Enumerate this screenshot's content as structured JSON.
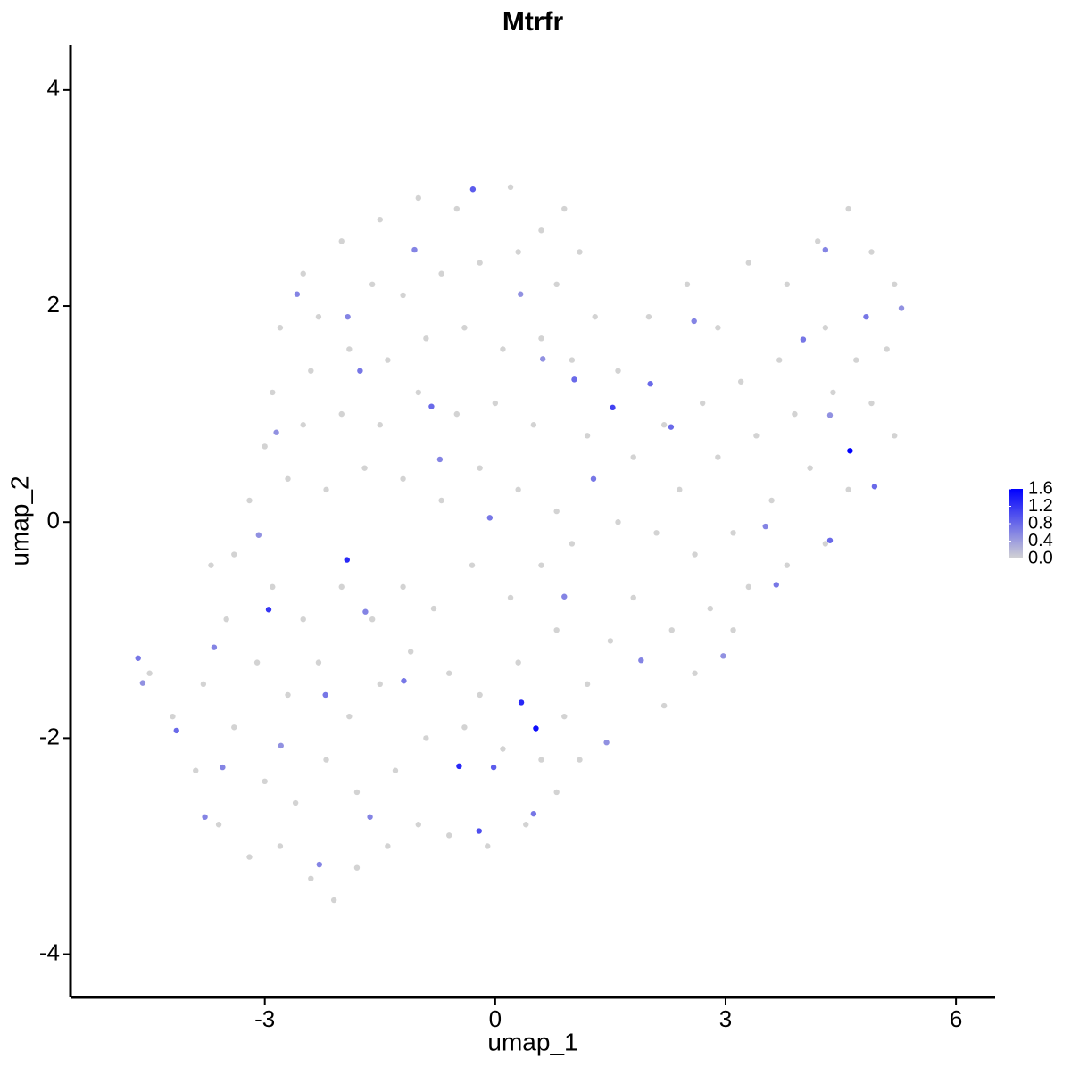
{
  "chart_data": {
    "type": "scatter",
    "title": "Mtrfr",
    "x_label": "umap_1",
    "y_label": "umap_2",
    "xlim": [
      -5.53,
      6.51
    ],
    "ylim": [
      -4.4,
      4.42
    ],
    "xticks": [
      -3,
      0,
      3,
      6
    ],
    "yticks": [
      -4,
      -2,
      0,
      2,
      4
    ],
    "color_low": "#d3d3d3",
    "color_high": "#0000ff",
    "clim": [
      0,
      1.6
    ],
    "colorbar_ticks": [
      {
        "value": 0,
        "label": "0.0"
      },
      0.4,
      0.8,
      1.2,
      1.6
    ],
    "x": [
      -2.5,
      -2.0,
      -1.5,
      -1.0,
      -0.5,
      0.2,
      0.6,
      1.1,
      0.9,
      -2.8,
      -2.3,
      -1.6,
      -1.2,
      -0.7,
      -0.2,
      0.3,
      0.8,
      1.3,
      -2.9,
      -2.4,
      -1.9,
      -1.4,
      -0.9,
      -0.4,
      0.1,
      0.6,
      1.0,
      -3.0,
      -2.5,
      -2.0,
      -1.5,
      -1.0,
      -0.5,
      0.0,
      0.5,
      1.2,
      -3.2,
      -2.7,
      -2.2,
      -1.7,
      -1.2,
      -0.7,
      -0.2,
      0.3,
      0.8,
      1.6,
      2.0,
      2.5,
      2.9,
      3.3,
      3.8,
      4.2,
      4.6,
      4.9,
      5.2,
      5.1,
      4.7,
      4.3,
      3.7,
      3.2,
      2.7,
      2.2,
      1.8,
      2.4,
      2.9,
      3.4,
      3.9,
      4.4,
      4.9,
      5.2,
      4.6,
      4.1,
      3.6,
      3.1,
      2.6,
      2.1,
      1.6,
      4.3,
      3.8,
      3.3,
      2.8,
      2.3,
      1.8,
      3.1,
      2.6,
      2.2,
      1.5,
      -4.5,
      -4.2,
      -3.9,
      -3.6,
      -3.2,
      -2.8,
      -2.4,
      -2.1,
      -1.8,
      -1.4,
      -1.0,
      -0.6,
      -0.1,
      0.4,
      0.8,
      1.1,
      -3.8,
      -3.4,
      -3.0,
      -2.6,
      -2.2,
      -1.8,
      -1.3,
      -0.9,
      -0.4,
      0.1,
      0.6,
      0.9,
      -3.5,
      -3.1,
      -2.7,
      -2.3,
      -1.9,
      -1.5,
      -1.1,
      -0.6,
      -0.2,
      0.3,
      0.8,
      1.2,
      -3.4,
      -2.9,
      -2.5,
      -2.0,
      -1.6,
      -1.2,
      -0.8,
      -0.3,
      0.2,
      0.6,
      1.0,
      -3.7,
      -2.58,
      -1.76,
      -2.85,
      -4.15,
      -3.66,
      -4.65,
      -4.59,
      -2.29,
      4.3,
      4.83,
      5.29,
      4.94,
      3.52,
      3.66,
      2.97,
      1.9,
      0.9,
      1.28,
      0.62,
      1.03,
      -1.69,
      -2.21,
      -3.08,
      -3.55,
      -1.63,
      0.5,
      1.45,
      2.29,
      -0.72,
      -0.07,
      0.33,
      -1.05,
      -1.92,
      4.01,
      4.36,
      4.36,
      2.59,
      -1.19,
      -2.79,
      -3.78,
      -0.83,
      2.02,
      -0.02,
      -0.21,
      -0.29,
      1.53,
      -2.95,
      -1.93,
      -0.47,
      0.34,
      0.53,
      4.62
    ],
    "y": [
      2.3,
      2.6,
      2.8,
      3.0,
      2.9,
      3.1,
      2.7,
      2.5,
      2.9,
      1.8,
      1.9,
      2.2,
      2.1,
      2.3,
      2.4,
      2.5,
      2.2,
      1.9,
      1.2,
      1.4,
      1.6,
      1.5,
      1.7,
      1.8,
      1.6,
      1.7,
      1.5,
      0.7,
      0.9,
      1.0,
      0.9,
      1.2,
      1.0,
      1.1,
      0.9,
      0.8,
      0.2,
      0.4,
      0.3,
      0.5,
      0.4,
      0.2,
      0.5,
      0.3,
      0.1,
      1.4,
      1.9,
      2.2,
      1.8,
      2.4,
      2.2,
      2.6,
      2.9,
      2.5,
      2.2,
      1.6,
      1.5,
      1.8,
      1.5,
      1.3,
      1.1,
      0.9,
      0.6,
      0.3,
      0.6,
      0.8,
      1.0,
      1.2,
      1.1,
      0.8,
      0.3,
      0.5,
      0.2,
      -0.1,
      -0.3,
      -0.1,
      0.0,
      -0.2,
      -0.4,
      -0.6,
      -0.8,
      -1.0,
      -0.7,
      -1.0,
      -1.4,
      -1.7,
      -1.1,
      -1.4,
      -1.8,
      -2.3,
      -2.8,
      -3.1,
      -3.0,
      -3.3,
      -3.5,
      -3.2,
      -3.0,
      -2.8,
      -2.9,
      -3.0,
      -2.8,
      -2.5,
      -2.2,
      -1.5,
      -1.9,
      -2.4,
      -2.6,
      -2.2,
      -2.5,
      -2.3,
      -2.0,
      -1.9,
      -2.1,
      -2.2,
      -1.8,
      -0.9,
      -1.3,
      -1.6,
      -1.3,
      -1.8,
      -1.5,
      -1.2,
      -1.4,
      -1.6,
      -1.3,
      -1.0,
      -1.5,
      -0.3,
      -0.6,
      -0.9,
      -0.6,
      -0.9,
      -0.6,
      -0.8,
      -0.4,
      -0.7,
      -0.4,
      -0.2,
      -0.4,
      2.11,
      1.4,
      0.83,
      -1.93,
      -1.16,
      -1.26,
      -1.49,
      -3.17,
      2.52,
      1.9,
      1.98,
      0.33,
      -0.04,
      -0.58,
      -1.24,
      -1.28,
      -0.69,
      0.4,
      1.51,
      1.32,
      -0.83,
      -1.6,
      -0.12,
      -2.27,
      -2.73,
      -2.7,
      -2.04,
      0.88,
      0.58,
      0.04,
      2.11,
      2.52,
      1.9,
      1.69,
      0.99,
      -0.17,
      1.86,
      -1.47,
      -2.07,
      -2.73,
      1.07,
      1.28,
      -2.27,
      -2.86,
      3.08,
      1.06,
      -0.81,
      -0.35,
      -2.26,
      -1.67,
      -1.91,
      0.66
    ],
    "values": [
      0,
      0,
      0,
      0,
      0,
      0,
      0,
      0,
      0,
      0,
      0,
      0,
      0,
      0,
      0,
      0,
      0,
      0,
      0,
      0,
      0,
      0,
      0,
      0,
      0,
      0,
      0,
      0,
      0,
      0,
      0,
      0,
      0,
      0,
      0,
      0,
      0,
      0,
      0,
      0,
      0,
      0,
      0,
      0,
      0,
      0,
      0,
      0,
      0,
      0,
      0,
      0,
      0,
      0,
      0,
      0,
      0,
      0,
      0,
      0,
      0,
      0,
      0,
      0,
      0,
      0,
      0,
      0,
      0,
      0,
      0,
      0,
      0,
      0,
      0,
      0,
      0,
      0,
      0,
      0,
      0,
      0,
      0,
      0,
      0,
      0,
      0,
      0,
      0,
      0,
      0,
      0,
      0,
      0,
      0,
      0,
      0,
      0,
      0,
      0,
      0,
      0,
      0,
      0,
      0,
      0,
      0,
      0,
      0,
      0,
      0,
      0,
      0,
      0,
      0,
      0,
      0,
      0,
      0,
      0,
      0,
      0,
      0,
      0,
      0,
      0,
      0,
      0,
      0,
      0,
      0,
      0,
      0,
      0,
      0,
      0,
      0,
      0,
      0,
      0.6,
      0.7,
      0.5,
      0.8,
      0.6,
      0.7,
      0.5,
      0.6,
      0.6,
      0.7,
      0.5,
      0.8,
      0.6,
      0.7,
      0.5,
      0.6,
      0.6,
      0.7,
      0.5,
      0.8,
      0.6,
      0.7,
      0.5,
      0.6,
      0.6,
      0.7,
      0.5,
      0.8,
      0.6,
      0.7,
      0.5,
      0.6,
      0.6,
      0.7,
      0.5,
      0.8,
      0.6,
      0.7,
      0.5,
      0.6,
      0.8,
      0.8,
      0.9,
      1.0,
      0.9,
      1.1,
      1.2,
      1.3,
      1.3,
      1.3,
      1.5,
      1.6
    ]
  }
}
